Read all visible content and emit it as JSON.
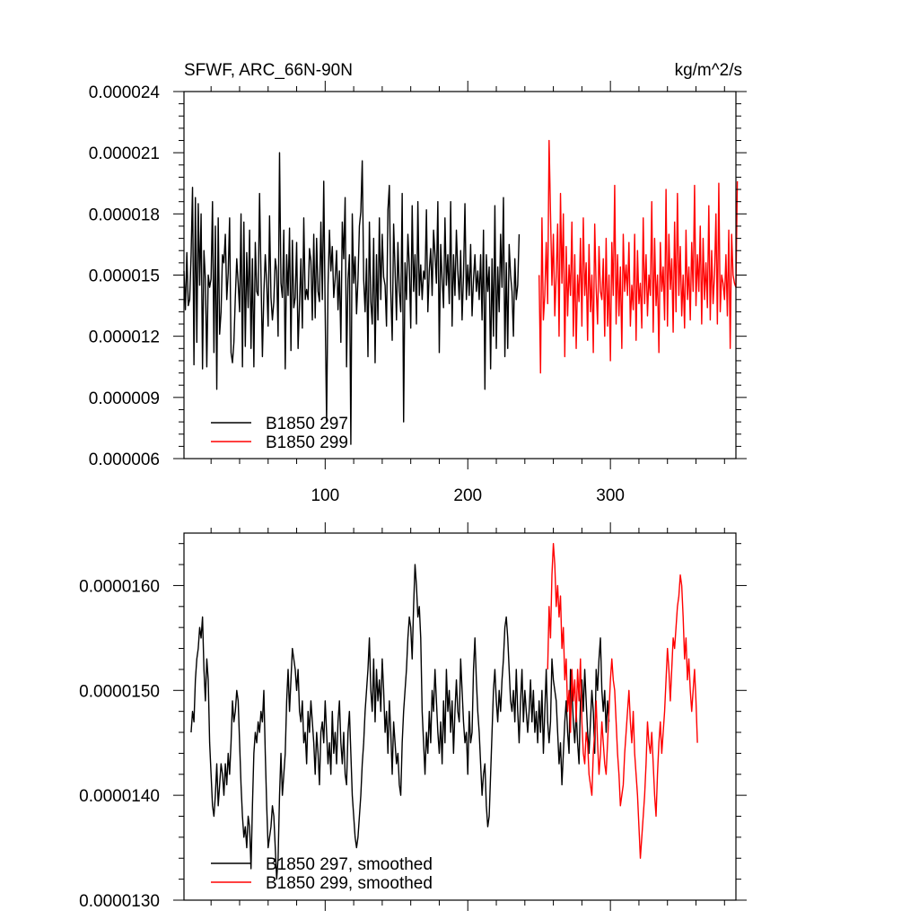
{
  "figure": {
    "title_left": "SFWF, ARC_66N-90N",
    "title_right": "kg/m^2/s"
  },
  "chart_data": [
    {
      "type": "line",
      "title": "SFWF, ARC_66N-90N",
      "units": "kg/m^2/s",
      "xlabel": "",
      "ylabel": "",
      "xlim": [
        1,
        388
      ],
      "ylim": [
        6e-06,
        2.4e-05
      ],
      "x_ticks": [
        100,
        200,
        300
      ],
      "x_tick_labels": [
        "100",
        "200",
        "300"
      ],
      "y_ticks": [
        6e-06,
        9e-06,
        1.2e-05,
        1.5e-05,
        1.8e-05,
        2.1e-05,
        2.4e-05
      ],
      "y_tick_labels": [
        "0.000006",
        "0.000009",
        "0.000012",
        "0.000015",
        "0.000018",
        "0.000021",
        "0.000024"
      ],
      "grid": false,
      "legend_position": "bottom-left",
      "series": [
        {
          "name": "B1850 297",
          "color": "#000000",
          "x_start": 1,
          "values": [
            1.52e-05,
            1.33e-05,
            1.61e-05,
            1.35e-05,
            1.38e-05,
            1.6e-05,
            1.93e-05,
            1.06e-05,
            1.88e-05,
            1.17e-05,
            1.85e-05,
            1.45e-05,
            1.8e-05,
            1.04e-05,
            1.62e-05,
            1.48e-05,
            1.05e-05,
            1.5e-05,
            1.44e-05,
            1.48e-05,
            1.86e-05,
            1.12e-05,
            1.74e-05,
            9.4e-06,
            1.78e-05,
            1.21e-05,
            1.32e-05,
            1.6e-05,
            1.56e-05,
            1.7e-05,
            1.38e-05,
            1.51e-05,
            1.78e-05,
            1.12e-05,
            1.07e-05,
            1.17e-05,
            1.39e-05,
            1.58e-05,
            1.46e-05,
            1.32e-05,
            1.8e-05,
            1.05e-05,
            1.76e-05,
            1.15e-05,
            1.61e-05,
            1.34e-05,
            1.72e-05,
            1.14e-05,
            1.58e-05,
            1.05e-05,
            1.66e-05,
            1.42e-05,
            1.4e-05,
            1.9e-05,
            1.5e-05,
            1.1e-05,
            1.41e-05,
            1.6e-05,
            1.46e-05,
            1.25e-05,
            1.79e-05,
            1.39e-05,
            1.28e-05,
            1.37e-05,
            1.58e-05,
            1.52e-05,
            1.2e-05,
            2.1e-05,
            1.46e-05,
            1.39e-05,
            1.72e-05,
            1.04e-05,
            1.6e-05,
            1.4e-05,
            1.73e-05,
            1.13e-05,
            1.67e-05,
            1.34e-05,
            1.39e-05,
            1.66e-05,
            1.14e-05,
            1.36e-05,
            1.58e-05,
            1.24e-05,
            1.78e-05,
            1.38e-05,
            1.43e-05,
            1.38e-05,
            1.63e-05,
            1.57e-05,
            1.28e-05,
            1.7e-05,
            1.29e-05,
            1.68e-05,
            1.42e-05,
            1.37e-05,
            1.76e-05,
            1.38e-05,
            1.96e-05,
            1.32e-05,
            7.8e-06,
            1.45e-05,
            1.72e-05,
            1.52e-05,
            1.64e-05,
            1.39e-05,
            1.48e-05,
            1.62e-05,
            1.33e-05,
            1.52e-05,
            1.17e-05,
            1.76e-05,
            1.58e-05,
            1.88e-05,
            1.05e-05,
            1.48e-05,
            1.6e-05,
            6.7e-06,
            1.8e-05,
            1.46e-05,
            1.59e-05,
            1.31e-05,
            1.48e-05,
            1.74e-05,
            1.81e-05,
            2.06e-05,
            1.48e-05,
            1.32e-05,
            1.58e-05,
            1.1e-05,
            1.76e-05,
            1.37e-05,
            1.26e-05,
            1.68e-05,
            1.07e-05,
            1.6e-05,
            1.28e-05,
            1.78e-05,
            1.38e-05,
            1.7e-05,
            1.49e-05,
            1.45e-05,
            1.25e-05,
            1.82e-05,
            1.94e-05,
            1.42e-05,
            1.18e-05,
            1.75e-05,
            1.53e-05,
            1.28e-05,
            1.66e-05,
            1.42e-05,
            1.32e-05,
            1.9e-05,
            7.8e-06,
            1.56e-05,
            1.38e-05,
            1.7e-05,
            1.54e-05,
            1.24e-05,
            1.84e-05,
            1.42e-05,
            1.6e-05,
            1.26e-05,
            1.86e-05,
            1.4e-05,
            1.55e-05,
            1.38e-05,
            1.52e-05,
            1.48e-05,
            1.82e-05,
            1.32e-05,
            1.52e-05,
            1.63e-05,
            1.4e-05,
            1.72e-05,
            1.6e-05,
            1.46e-05,
            1.86e-05,
            1.12e-05,
            1.65e-05,
            1.48e-05,
            1.34e-05,
            1.78e-05,
            1.45e-05,
            1.6e-05,
            1.36e-05,
            1.86e-05,
            1.25e-05,
            1.6e-05,
            1.4e-05,
            1.72e-05,
            1.52e-05,
            1.38e-05,
            1.62e-05,
            1.28e-05,
            1.5e-05,
            1.85e-05,
            1.38e-05,
            1.55e-05,
            1.4e-05,
            1.65e-05,
            1.3e-05,
            1.48e-05,
            1.6e-05,
            1.42e-05,
            1.52e-05,
            1.38e-05,
            1.6e-05,
            1.28e-05,
            1.72e-05,
            9.4e-06,
            1.6e-05,
            1.42e-05,
            1.54e-05,
            1.04e-05,
            1.58e-05,
            1.2e-05,
            1.84e-05,
            1.14e-05,
            1.54e-05,
            1.32e-05,
            1.7e-05,
            1.44e-05,
            1.88e-05,
            1.1e-05,
            1.56e-05,
            1.14e-05,
            1.65e-05,
            1.5e-05,
            1.42e-05,
            1.2e-05,
            1.58e-05,
            1.38e-05,
            1.45e-05,
            1.7e-05
          ]
        },
        {
          "name": "B1850 299",
          "color": "#ff0000",
          "x_start": 250,
          "values": [
            1.5e-05,
            1.02e-05,
            1.78e-05,
            1.28e-05,
            1.4e-05,
            1.66e-05,
            1.36e-05,
            2.16e-05,
            1.8e-05,
            1.45e-05,
            1.7e-05,
            1.3e-05,
            1.5e-05,
            1.75e-05,
            1.2e-05,
            1.9e-05,
            1.46e-05,
            1.8e-05,
            1.1e-05,
            1.64e-05,
            1.3e-05,
            1.55e-05,
            1.4e-05,
            1.76e-05,
            1.2e-05,
            1.6e-05,
            1.14e-05,
            1.5e-05,
            1.37e-05,
            1.68e-05,
            1.25e-05,
            1.78e-05,
            1.4e-05,
            1.56e-05,
            1.18e-05,
            1.65e-05,
            1.32e-05,
            1.5e-05,
            1.12e-05,
            1.75e-05,
            1.44e-05,
            1.26e-05,
            1.64e-05,
            1.42e-05,
            1.38e-05,
            1.58e-05,
            1.2e-05,
            1.68e-05,
            1.25e-05,
            1.5e-05,
            1.08e-05,
            1.66e-05,
            1.4e-05,
            1.94e-05,
            1.26e-05,
            1.6e-05,
            1.3e-05,
            1.54e-05,
            1.14e-05,
            1.7e-05,
            1.42e-05,
            1.55e-05,
            1.4e-05,
            1.66e-05,
            1.25e-05,
            1.45e-05,
            1.33e-05,
            1.7e-05,
            1.18e-05,
            1.62e-05,
            1.36e-05,
            1.46e-05,
            1.24e-05,
            1.78e-05,
            1.36e-05,
            1.6e-05,
            1.3e-05,
            1.5e-05,
            1.4e-05,
            1.86e-05,
            1.22e-05,
            1.68e-05,
            1.35e-05,
            1.5e-05,
            1.12e-05,
            1.66e-05,
            1.42e-05,
            1.54e-05,
            1.28e-05,
            1.92e-05,
            1.25e-05,
            1.7e-05,
            1.43e-05,
            1.58e-05,
            1.22e-05,
            1.76e-05,
            1.32e-05,
            1.9e-05,
            1.4e-05,
            1.64e-05,
            1.3e-05,
            1.5e-05,
            1.24e-05,
            1.72e-05,
            1.38e-05,
            1.54e-05,
            1.28e-05,
            1.66e-05,
            1.42e-05,
            1.94e-05,
            1.35e-05,
            1.6e-05,
            1.42e-05,
            1.74e-05,
            1.26e-05,
            1.68e-05,
            1.38e-05,
            1.56e-05,
            1.34e-05,
            1.84e-05,
            1.28e-05,
            1.62e-05,
            1.36e-05,
            1.5e-05,
            1.8e-05,
            1.26e-05,
            1.95e-05,
            1.32e-05,
            1.5e-05,
            1.46e-05,
            1.38e-05,
            1.6e-05,
            1.3e-05,
            1.72e-05,
            1.14e-05,
            1.7e-05,
            1.5e-05,
            1.46e-05,
            1.44e-05,
            1.96e-05
          ]
        }
      ]
    },
    {
      "type": "line",
      "title": "",
      "xlabel": "",
      "ylabel": "",
      "xlim": [
        1,
        388
      ],
      "ylim": [
        1.3e-05,
        1.65e-05
      ],
      "x_ticks": [
        100,
        200,
        300
      ],
      "y_ticks": [
        1.3e-05,
        1.4e-05,
        1.5e-05,
        1.6e-05
      ],
      "y_tick_labels": [
        "0.0000130",
        "0.0000140",
        "0.0000150",
        "0.0000160"
      ],
      "grid": false,
      "legend_position": "bottom-left",
      "series": [
        {
          "name": "B1850 297, smoothed",
          "color": "#000000",
          "x_start": 6,
          "values": [
            1.46e-05,
            1.48e-05,
            1.47e-05,
            1.51e-05,
            1.53e-05,
            1.54e-05,
            1.56e-05,
            1.55e-05,
            1.57e-05,
            1.52e-05,
            1.49e-05,
            1.53e-05,
            1.51e-05,
            1.45e-05,
            1.42e-05,
            1.39e-05,
            1.38e-05,
            1.4e-05,
            1.43e-05,
            1.39e-05,
            1.41e-05,
            1.43e-05,
            1.42e-05,
            1.4e-05,
            1.43e-05,
            1.41e-05,
            1.44e-05,
            1.42e-05,
            1.45e-05,
            1.49e-05,
            1.47e-05,
            1.48e-05,
            1.5e-05,
            1.49e-05,
            1.45e-05,
            1.41e-05,
            1.38e-05,
            1.36e-05,
            1.37e-05,
            1.35e-05,
            1.38e-05,
            1.37e-05,
            1.33e-05,
            1.39e-05,
            1.44e-05,
            1.46e-05,
            1.45e-05,
            1.47e-05,
            1.46e-05,
            1.48e-05,
            1.47e-05,
            1.5e-05,
            1.44e-05,
            1.39e-05,
            1.35e-05,
            1.36e-05,
            1.37e-05,
            1.39e-05,
            1.38e-05,
            1.35e-05,
            1.32e-05,
            1.34e-05,
            1.4e-05,
            1.44e-05,
            1.4e-05,
            1.42e-05,
            1.44e-05,
            1.49e-05,
            1.52e-05,
            1.48e-05,
            1.51e-05,
            1.54e-05,
            1.53e-05,
            1.52e-05,
            1.5e-05,
            1.52e-05,
            1.48e-05,
            1.47e-05,
            1.49e-05,
            1.45e-05,
            1.46e-05,
            1.43e-05,
            1.48e-05,
            1.46e-05,
            1.49e-05,
            1.47e-05,
            1.45e-05,
            1.42e-05,
            1.46e-05,
            1.44e-05,
            1.41e-05,
            1.46e-05,
            1.47e-05,
            1.45e-05,
            1.49e-05,
            1.46e-05,
            1.43e-05,
            1.45e-05,
            1.42e-05,
            1.48e-05,
            1.44e-05,
            1.46e-05,
            1.43e-05,
            1.47e-05,
            1.49e-05,
            1.45e-05,
            1.43e-05,
            1.46e-05,
            1.42e-05,
            1.41e-05,
            1.46e-05,
            1.48e-05,
            1.44e-05,
            1.4e-05,
            1.38e-05,
            1.36e-05,
            1.35e-05,
            1.36e-05,
            1.38e-05,
            1.4e-05,
            1.43e-05,
            1.45e-05,
            1.48e-05,
            1.5e-05,
            1.52e-05,
            1.55e-05,
            1.5e-05,
            1.48e-05,
            1.53e-05,
            1.47e-05,
            1.52e-05,
            1.49e-05,
            1.51e-05,
            1.48e-05,
            1.53e-05,
            1.5e-05,
            1.46e-05,
            1.48e-05,
            1.44e-05,
            1.49e-05,
            1.46e-05,
            1.42e-05,
            1.47e-05,
            1.45e-05,
            1.43e-05,
            1.44e-05,
            1.41e-05,
            1.4e-05,
            1.45e-05,
            1.48e-05,
            1.5e-05,
            1.52e-05,
            1.55e-05,
            1.57e-05,
            1.56e-05,
            1.53e-05,
            1.58e-05,
            1.62e-05,
            1.6e-05,
            1.57e-05,
            1.58e-05,
            1.55e-05,
            1.48e-05,
            1.45e-05,
            1.42e-05,
            1.46e-05,
            1.44e-05,
            1.48e-05,
            1.45e-05,
            1.5e-05,
            1.48e-05,
            1.52e-05,
            1.49e-05,
            1.46e-05,
            1.44e-05,
            1.47e-05,
            1.43e-05,
            1.49e-05,
            1.45e-05,
            1.52e-05,
            1.48e-05,
            1.5e-05,
            1.46e-05,
            1.49e-05,
            1.44e-05,
            1.48e-05,
            1.51e-05,
            1.48e-05,
            1.47e-05,
            1.53e-05,
            1.5e-05,
            1.47e-05,
            1.45e-05,
            1.46e-05,
            1.42e-05,
            1.48e-05,
            1.45e-05,
            1.46e-05,
            1.52e-05,
            1.55e-05,
            1.51e-05,
            1.48e-05,
            1.46e-05,
            1.43e-05,
            1.4e-05,
            1.42e-05,
            1.43e-05,
            1.39e-05,
            1.37e-05,
            1.38e-05,
            1.42e-05,
            1.46e-05,
            1.5e-05,
            1.52e-05,
            1.49e-05,
            1.47e-05,
            1.5e-05,
            1.48e-05,
            1.51e-05,
            1.53e-05,
            1.56e-05,
            1.57e-05,
            1.55e-05,
            1.52e-05,
            1.49e-05,
            1.48e-05,
            1.5e-05,
            1.47e-05,
            1.52e-05,
            1.48e-05,
            1.45e-05,
            1.49e-05,
            1.52e-05,
            1.47e-05,
            1.5e-05,
            1.48e-05,
            1.46e-05,
            1.48e-05,
            1.51e-05,
            1.47e-05,
            1.5e-05,
            1.46e-05,
            1.48e-05,
            1.45e-05,
            1.49e-05,
            1.46e-05,
            1.5e-05,
            1.44e-05,
            1.48e-05,
            1.52e-05,
            1.47e-05,
            1.45e-05,
            1.47e-05,
            1.53e-05,
            1.51e-05,
            1.5e-05,
            1.49e-05,
            1.46e-05,
            1.43e-05,
            1.45e-05,
            1.41e-05,
            1.44e-05,
            1.47e-05,
            1.49e-05,
            1.46e-05,
            1.44e-05,
            1.52e-05,
            1.5e-05,
            1.47e-05,
            1.45e-05,
            1.48e-05,
            1.45e-05,
            1.43e-05,
            1.49e-05,
            1.51e-05,
            1.48e-05,
            1.52e-05,
            1.49e-05,
            1.46e-05,
            1.44e-05,
            1.47e-05,
            1.5e-05,
            1.48e-05,
            1.44e-05,
            1.52e-05,
            1.5e-05,
            1.53e-05,
            1.55e-05,
            1.5e-05,
            1.48e-05,
            1.5e-05,
            1.46e-05,
            1.49e-05,
            1.47e-05
          ]
        },
        {
          "name": "B1850 299, smoothed",
          "color": "#ff0000",
          "x_start": 256,
          "values": [
            1.52e-05,
            1.58e-05,
            1.55e-05,
            1.61e-05,
            1.64e-05,
            1.62e-05,
            1.58e-05,
            1.6e-05,
            1.57e-05,
            1.59e-05,
            1.54e-05,
            1.56e-05,
            1.51e-05,
            1.53e-05,
            1.48e-05,
            1.5e-05,
            1.46e-05,
            1.52e-05,
            1.49e-05,
            1.51e-05,
            1.47e-05,
            1.52e-05,
            1.49e-05,
            1.53e-05,
            1.47e-05,
            1.44e-05,
            1.43e-05,
            1.46e-05,
            1.45e-05,
            1.42e-05,
            1.41e-05,
            1.4e-05,
            1.44e-05,
            1.46e-05,
            1.49e-05,
            1.45e-05,
            1.42e-05,
            1.44e-05,
            1.47e-05,
            1.45e-05,
            1.43e-05,
            1.42e-05,
            1.45e-05,
            1.48e-05,
            1.51e-05,
            1.53e-05,
            1.51e-05,
            1.5e-05,
            1.47e-05,
            1.44e-05,
            1.42e-05,
            1.39e-05,
            1.4e-05,
            1.41e-05,
            1.44e-05,
            1.46e-05,
            1.48e-05,
            1.5e-05,
            1.47e-05,
            1.45e-05,
            1.48e-05,
            1.44e-05,
            1.42e-05,
            1.4e-05,
            1.37e-05,
            1.34e-05,
            1.36e-05,
            1.38e-05,
            1.4e-05,
            1.43e-05,
            1.47e-05,
            1.45e-05,
            1.44e-05,
            1.46e-05,
            1.43e-05,
            1.4e-05,
            1.38e-05,
            1.42e-05,
            1.45e-05,
            1.47e-05,
            1.44e-05,
            1.46e-05,
            1.48e-05,
            1.51e-05,
            1.54e-05,
            1.52e-05,
            1.49e-05,
            1.52e-05,
            1.55e-05,
            1.54e-05,
            1.56e-05,
            1.58e-05,
            1.59e-05,
            1.61e-05,
            1.6e-05,
            1.57e-05,
            1.53e-05,
            1.55e-05,
            1.51e-05,
            1.53e-05,
            1.5e-05,
            1.48e-05,
            1.5e-05,
            1.52e-05,
            1.49e-05,
            1.45e-05
          ]
        }
      ]
    }
  ]
}
